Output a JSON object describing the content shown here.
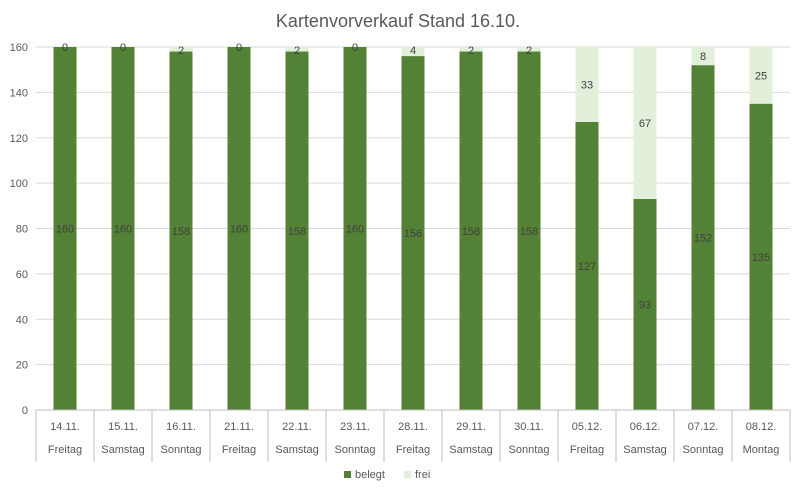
{
  "chart_data": {
    "type": "bar",
    "stacked": true,
    "title": "Kartenvorverkauf Stand 16.10.",
    "xlabel": "",
    "ylabel": "",
    "ylim": [
      0,
      160
    ],
    "yticks": [
      0,
      20,
      40,
      60,
      80,
      100,
      120,
      140,
      160
    ],
    "grid": true,
    "legend_position": "bottom",
    "categories": [
      [
        "14.11.",
        "Freitag"
      ],
      [
        "15.11.",
        "Samstag"
      ],
      [
        "16.11.",
        "Sonntag"
      ],
      [
        "21.11.",
        "Freitag"
      ],
      [
        "22.11.",
        "Samstag"
      ],
      [
        "23.11.",
        "Sonntag"
      ],
      [
        "28.11.",
        "Freitag"
      ],
      [
        "29.11.",
        "Samstag"
      ],
      [
        "30.11.",
        "Sonntag"
      ],
      [
        "05.12.",
        "Freitag"
      ],
      [
        "06.12.",
        "Samstag"
      ],
      [
        "07.12.",
        "Sonntag"
      ],
      [
        "08.12.",
        "Montag"
      ]
    ],
    "series": [
      {
        "name": "belegt",
        "color": "#538135",
        "values": [
          160,
          160,
          158,
          160,
          158,
          160,
          156,
          158,
          158,
          127,
          93,
          152,
          135
        ]
      },
      {
        "name": "frei",
        "color": "#E2EFDA",
        "values": [
          0,
          0,
          2,
          0,
          2,
          0,
          4,
          2,
          2,
          33,
          67,
          8,
          25
        ]
      }
    ],
    "colors": {
      "grid": "#D9D9D9",
      "axis": "#BFBFBF",
      "text": "#595959",
      "label": "#404040"
    }
  }
}
